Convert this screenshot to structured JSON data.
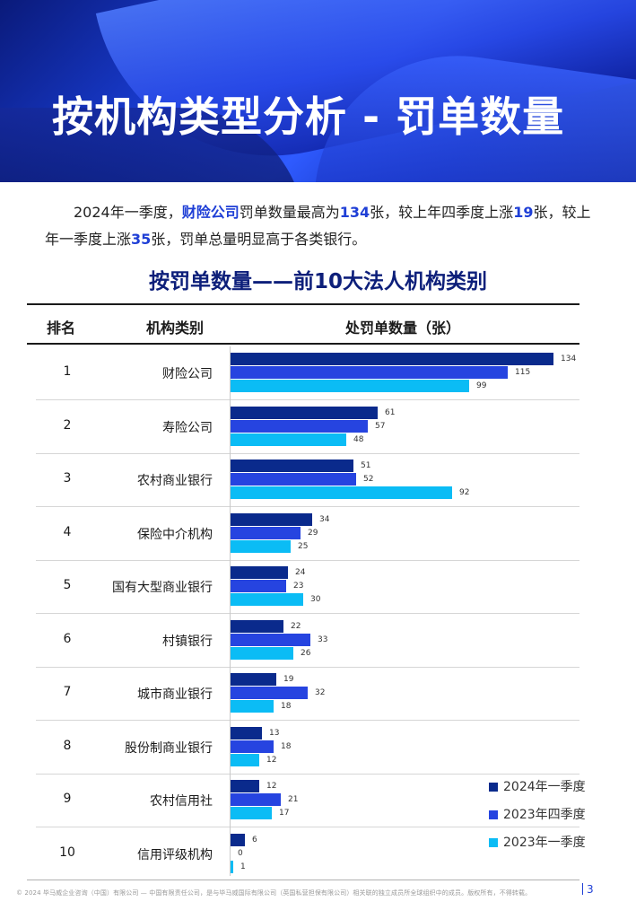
{
  "banner": {
    "title": "按机构类型分析 - 罚单数量"
  },
  "intro": [
    {
      "text": "2024年一季度，",
      "hl": false
    },
    {
      "text": "财险公司",
      "hl": true
    },
    {
      "text": "罚单数量最高为",
      "hl": false
    },
    {
      "text": "134",
      "hl": true
    },
    {
      "text": "张，较上年四季度上涨",
      "hl": false
    },
    {
      "text": "19",
      "hl": true
    },
    {
      "text": "张，较上年一季度上涨",
      "hl": false
    },
    {
      "text": "35",
      "hl": true
    },
    {
      "text": "张，罚单总量明显高于各类银行。",
      "hl": false
    }
  ],
  "table": {
    "title": "按罚单数量——前10大法人机构类别",
    "headers": {
      "rank": "排名",
      "category": "机构类别",
      "count": "处罚单数量（张）"
    }
  },
  "chart_data": {
    "type": "bar",
    "orientation": "horizontal",
    "categories": [
      "财险公司",
      "寿险公司",
      "农村商业银行",
      "保险中介机构",
      "国有大型商业银行",
      "村镇银行",
      "城市商业银行",
      "股份制商业银行",
      "农村信用社",
      "信用评级机构"
    ],
    "ranks": [
      "1",
      "2",
      "3",
      "4",
      "5",
      "6",
      "7",
      "8",
      "9",
      "10"
    ],
    "series": [
      {
        "name": "2024年一季度",
        "color": "#0a2a8c",
        "values": [
          134,
          61,
          51,
          34,
          24,
          22,
          19,
          13,
          12,
          6
        ]
      },
      {
        "name": "2023年四季度",
        "color": "#2644e0",
        "values": [
          115,
          57,
          52,
          29,
          23,
          33,
          32,
          18,
          21,
          0
        ]
      },
      {
        "name": "2023年一季度",
        "color": "#0bbcf5",
        "values": [
          99,
          48,
          92,
          25,
          30,
          26,
          18,
          12,
          17,
          1
        ]
      }
    ],
    "xlim": [
      0,
      134
    ],
    "legend": "bottom-right"
  },
  "footer": {
    "text": "© 2024 毕马威企业咨询（中国）有限公司 — 中国有限责任公司，是与毕马威国际有限公司（英国私营担保有限公司）相关联的独立成员所全球组织中的成员。版权所有，不得转载。",
    "page": "3"
  }
}
